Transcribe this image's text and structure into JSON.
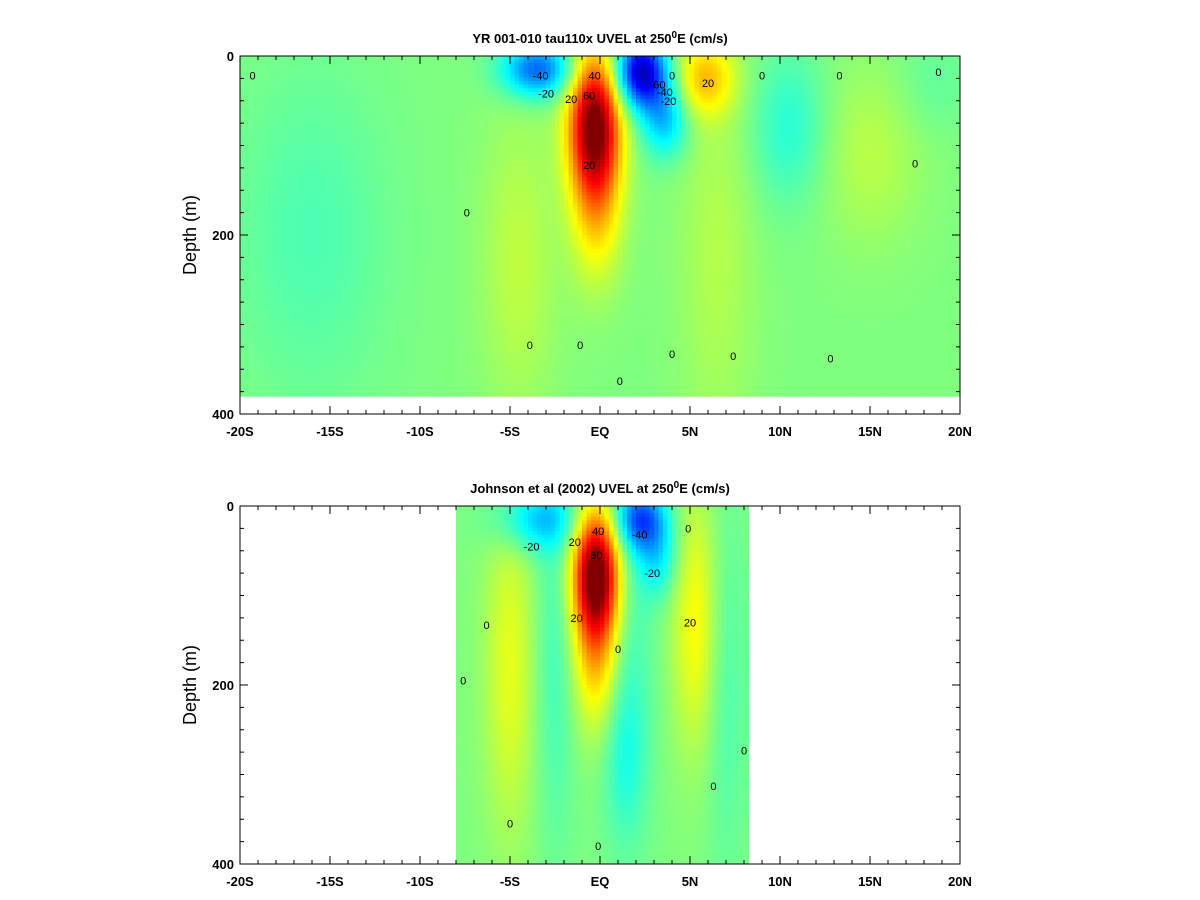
{
  "chart_data": [
    {
      "type": "heatmap",
      "title": "YR 001-010 tau110x UVEL at 250",
      "title_sup": "0",
      "title_tail": "E (cm/s)",
      "ylabel": "Depth (m)",
      "xlim": [
        -20,
        20
      ],
      "ylim": [
        400,
        0
      ],
      "x_ticks": [
        -20,
        -15,
        -10,
        -5,
        0,
        5,
        10,
        15,
        20
      ],
      "x_tick_labels": [
        "-20S",
        "-15S",
        "-10S",
        "-5S",
        "EQ",
        "5N",
        "10N",
        "15N",
        "20N"
      ],
      "y_ticks": [
        0,
        200,
        400
      ],
      "y_tick_labels": [
        "0",
        "200",
        "400"
      ],
      "data_extent": {
        "x": [
          -20,
          20
        ],
        "y_max": 380
      },
      "features": [
        {
          "x": -0.3,
          "y": 75,
          "value": 80,
          "sx": 1.0,
          "sy": 55
        },
        {
          "x": -0.2,
          "y": 170,
          "value": 25,
          "sx": 1.0,
          "sy": 60
        },
        {
          "x": -3.5,
          "y": 15,
          "value": -45,
          "sx": 1.4,
          "sy": 22
        },
        {
          "x": 2.3,
          "y": 18,
          "value": -70,
          "sx": 1.0,
          "sy": 28
        },
        {
          "x": 3.6,
          "y": 70,
          "value": -30,
          "sx": 0.9,
          "sy": 30
        },
        {
          "x": 5.8,
          "y": 25,
          "value": 28,
          "sx": 1.2,
          "sy": 30
        },
        {
          "x": 6.5,
          "y": 220,
          "value": 8,
          "sx": 1.5,
          "sy": 160
        },
        {
          "x": -4.5,
          "y": 230,
          "value": 10,
          "sx": 1.5,
          "sy": 120
        },
        {
          "x": 10.5,
          "y": 80,
          "value": -14,
          "sx": 1.5,
          "sy": 60
        },
        {
          "x": 15.0,
          "y": 110,
          "value": 9,
          "sx": 2.0,
          "sy": 70
        },
        {
          "x": -16.0,
          "y": 200,
          "value": -8,
          "sx": 3.0,
          "sy": 130
        },
        {
          "x": 18.5,
          "y": 30,
          "value": -5,
          "sx": 1.5,
          "sy": 40
        }
      ],
      "contour_labels": [
        {
          "x": -19.3,
          "y": 22,
          "text": "0"
        },
        {
          "x": -3.3,
          "y": 22,
          "text": "-40"
        },
        {
          "x": -3.0,
          "y": 42,
          "text": "-20"
        },
        {
          "x": -0.3,
          "y": 22,
          "text": "40"
        },
        {
          "x": -1.6,
          "y": 48,
          "text": "20"
        },
        {
          "x": -0.6,
          "y": 44,
          "text": "60"
        },
        {
          "x": -0.6,
          "y": 122,
          "text": "20"
        },
        {
          "x": 3.2,
          "y": 32,
          "text": "-60"
        },
        {
          "x": 3.6,
          "y": 40,
          "text": "-40"
        },
        {
          "x": 3.8,
          "y": 50,
          "text": "-20"
        },
        {
          "x": 4.0,
          "y": 22,
          "text": "0"
        },
        {
          "x": 6.0,
          "y": 30,
          "text": "20"
        },
        {
          "x": 9.0,
          "y": 22,
          "text": "0"
        },
        {
          "x": 13.3,
          "y": 22,
          "text": "0"
        },
        {
          "x": 18.8,
          "y": 18,
          "text": "0"
        },
        {
          "x": 17.5,
          "y": 120,
          "text": "0"
        },
        {
          "x": -7.4,
          "y": 175,
          "text": "0"
        },
        {
          "x": -3.9,
          "y": 323,
          "text": "0"
        },
        {
          "x": -1.1,
          "y": 323,
          "text": "0"
        },
        {
          "x": 1.1,
          "y": 363,
          "text": "0"
        },
        {
          "x": 4.0,
          "y": 333,
          "text": "0"
        },
        {
          "x": 7.4,
          "y": 335,
          "text": "0"
        },
        {
          "x": 12.8,
          "y": 338,
          "text": "0"
        }
      ]
    },
    {
      "type": "heatmap",
      "title": "Johnson et al (2002) UVEL at 250",
      "title_sup": "0",
      "title_tail": "E (cm/s)",
      "ylabel": "Depth (m)",
      "xlim": [
        -20,
        20
      ],
      "ylim": [
        400,
        0
      ],
      "x_ticks": [
        -20,
        -15,
        -10,
        -5,
        0,
        5,
        10,
        15,
        20
      ],
      "x_tick_labels": [
        "-20S",
        "-15S",
        "-10S",
        "-5S",
        "EQ",
        "5N",
        "10N",
        "15N",
        "20N"
      ],
      "y_ticks": [
        0,
        200,
        400
      ],
      "y_tick_labels": [
        "0",
        "200",
        "400"
      ],
      "data_extent": {
        "x": [
          -8,
          8.2
        ],
        "y_max": 400
      },
      "features": [
        {
          "x": -0.2,
          "y": 75,
          "value": 85,
          "sx": 0.9,
          "sy": 50
        },
        {
          "x": -0.2,
          "y": 170,
          "value": 28,
          "sx": 0.9,
          "sy": 60
        },
        {
          "x": -3.5,
          "y": 15,
          "value": -28,
          "sx": 1.6,
          "sy": 25
        },
        {
          "x": 2.3,
          "y": 15,
          "value": -45,
          "sx": 1.0,
          "sy": 25
        },
        {
          "x": 3.2,
          "y": 60,
          "value": -20,
          "sx": 0.8,
          "sy": 30
        },
        {
          "x": 5.3,
          "y": 130,
          "value": 20,
          "sx": 0.9,
          "sy": 100
        },
        {
          "x": -5.0,
          "y": 180,
          "value": 16,
          "sx": 1.0,
          "sy": 130
        },
        {
          "x": 1.4,
          "y": 280,
          "value": -10,
          "sx": 0.8,
          "sy": 60
        },
        {
          "x": 1.5,
          "y": 160,
          "value": -10,
          "sx": 1.0,
          "sy": 150
        },
        {
          "x": -2.5,
          "y": 170,
          "value": -10,
          "sx": 0.8,
          "sy": 150
        },
        {
          "x": 7.0,
          "y": 200,
          "value": -8,
          "sx": 0.8,
          "sy": 150
        }
      ],
      "contour_labels": [
        {
          "x": -3.8,
          "y": 45,
          "text": "-20"
        },
        {
          "x": -1.4,
          "y": 40,
          "text": "20"
        },
        {
          "x": -0.1,
          "y": 28,
          "text": "40"
        },
        {
          "x": -0.2,
          "y": 55,
          "text": "60"
        },
        {
          "x": 2.2,
          "y": 32,
          "text": "-40"
        },
        {
          "x": 2.9,
          "y": 75,
          "text": "-20"
        },
        {
          "x": -1.3,
          "y": 125,
          "text": "20"
        },
        {
          "x": 5.0,
          "y": 130,
          "text": "20"
        },
        {
          "x": 4.9,
          "y": 25,
          "text": "0"
        },
        {
          "x": -6.3,
          "y": 133,
          "text": "0"
        },
        {
          "x": -7.6,
          "y": 195,
          "text": "0"
        },
        {
          "x": 1.0,
          "y": 160,
          "text": "0"
        },
        {
          "x": -5.0,
          "y": 355,
          "text": "0"
        },
        {
          "x": 6.3,
          "y": 313,
          "text": "0"
        },
        {
          "x": 8.0,
          "y": 273,
          "text": "0"
        },
        {
          "x": -0.1,
          "y": 380,
          "text": "0"
        }
      ]
    }
  ]
}
